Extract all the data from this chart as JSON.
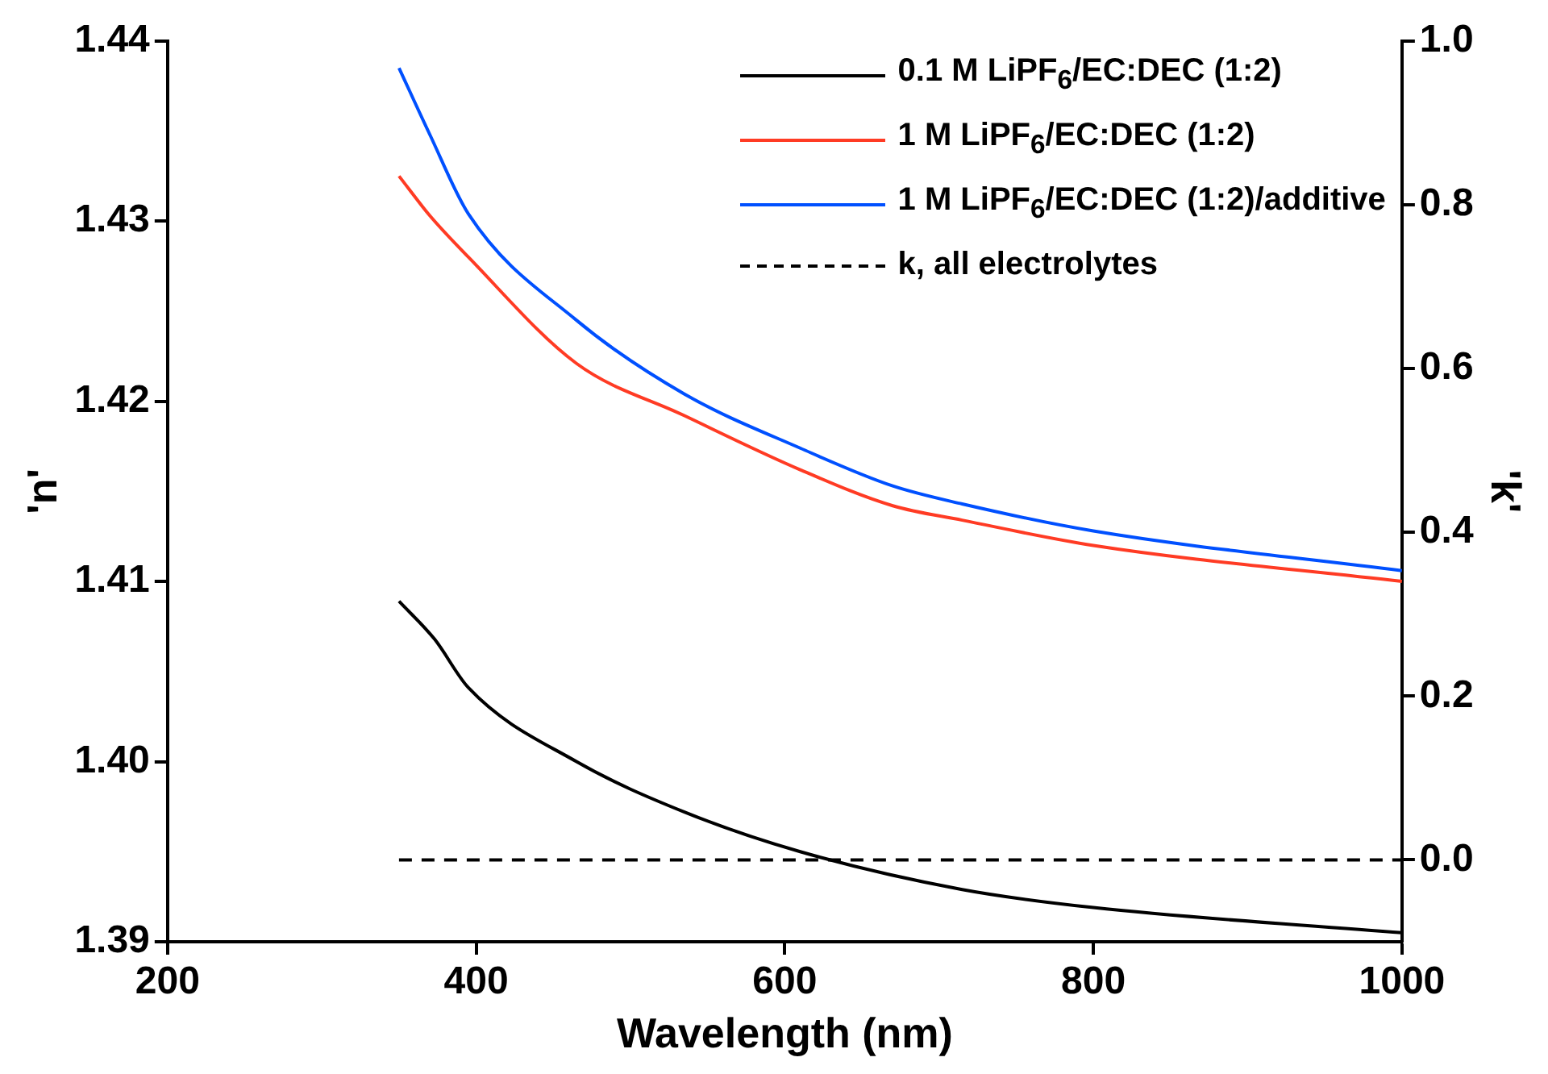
{
  "chart_data": {
    "type": "line",
    "xlabel": "Wavelength (nm)",
    "ylabel": "'n'",
    "y2label": "'k'",
    "xlim": [
      200,
      1000
    ],
    "xticks": [
      200,
      400,
      600,
      800,
      1000
    ],
    "ylim": [
      1.39,
      1.44
    ],
    "yticks": [
      1.39,
      {
        "value": 1.4,
        "label": "1.40"
      },
      1.41,
      1.42,
      1.43,
      1.44
    ],
    "y2lim": [
      -0.1,
      1.0
    ],
    "y2ticks": [
      {
        "value": 0,
        "label": "0.0"
      },
      0.2,
      0.4,
      0.6,
      0.8,
      {
        "value": 1,
        "label": "1.0"
      }
    ],
    "grid": false,
    "legend": "top right",
    "marker": "none",
    "series": [
      {
        "name": "0.1 M LiPF$_{6}$/EC:DEC (1:2)",
        "color": "#000000",
        "x": [
          350,
          373,
          395,
          465,
          535,
          610,
          715,
          800,
          1000
        ],
        "values": [
          1.4089,
          1.4068,
          1.4041,
          1.4,
          1.3972,
          1.395,
          1.3929,
          1.3919,
          1.3905
        ]
      },
      {
        "name": "1 M LiPF$_{6}$/EC:DEC (1:2)",
        "color": "#ff3b24",
        "x": [
          350,
          370,
          395,
          465,
          535,
          610,
          670,
          715,
          800,
          1000
        ],
        "values": [
          1.4325,
          1.4303,
          1.428,
          1.4221,
          1.4192,
          1.4162,
          1.4142,
          1.4134,
          1.412,
          1.41
        ]
      },
      {
        "name": "1 M LiPF$_{6}$/EC:DEC (1:2)/additive",
        "color": "#0050ff",
        "x": [
          350,
          370,
          395,
          465,
          535,
          610,
          670,
          715,
          800,
          1000
        ],
        "values": [
          1.4385,
          1.4348,
          1.4304,
          1.4245,
          1.4204,
          1.4174,
          1.4153,
          1.4143,
          1.4128,
          1.4106
        ]
      },
      {
        "name": "k, all electrolytes",
        "color": "#000000",
        "axis": "y2",
        "line_style": "dashed",
        "x": [
          350,
          1000
        ],
        "values": [
          0,
          0
        ]
      }
    ]
  }
}
